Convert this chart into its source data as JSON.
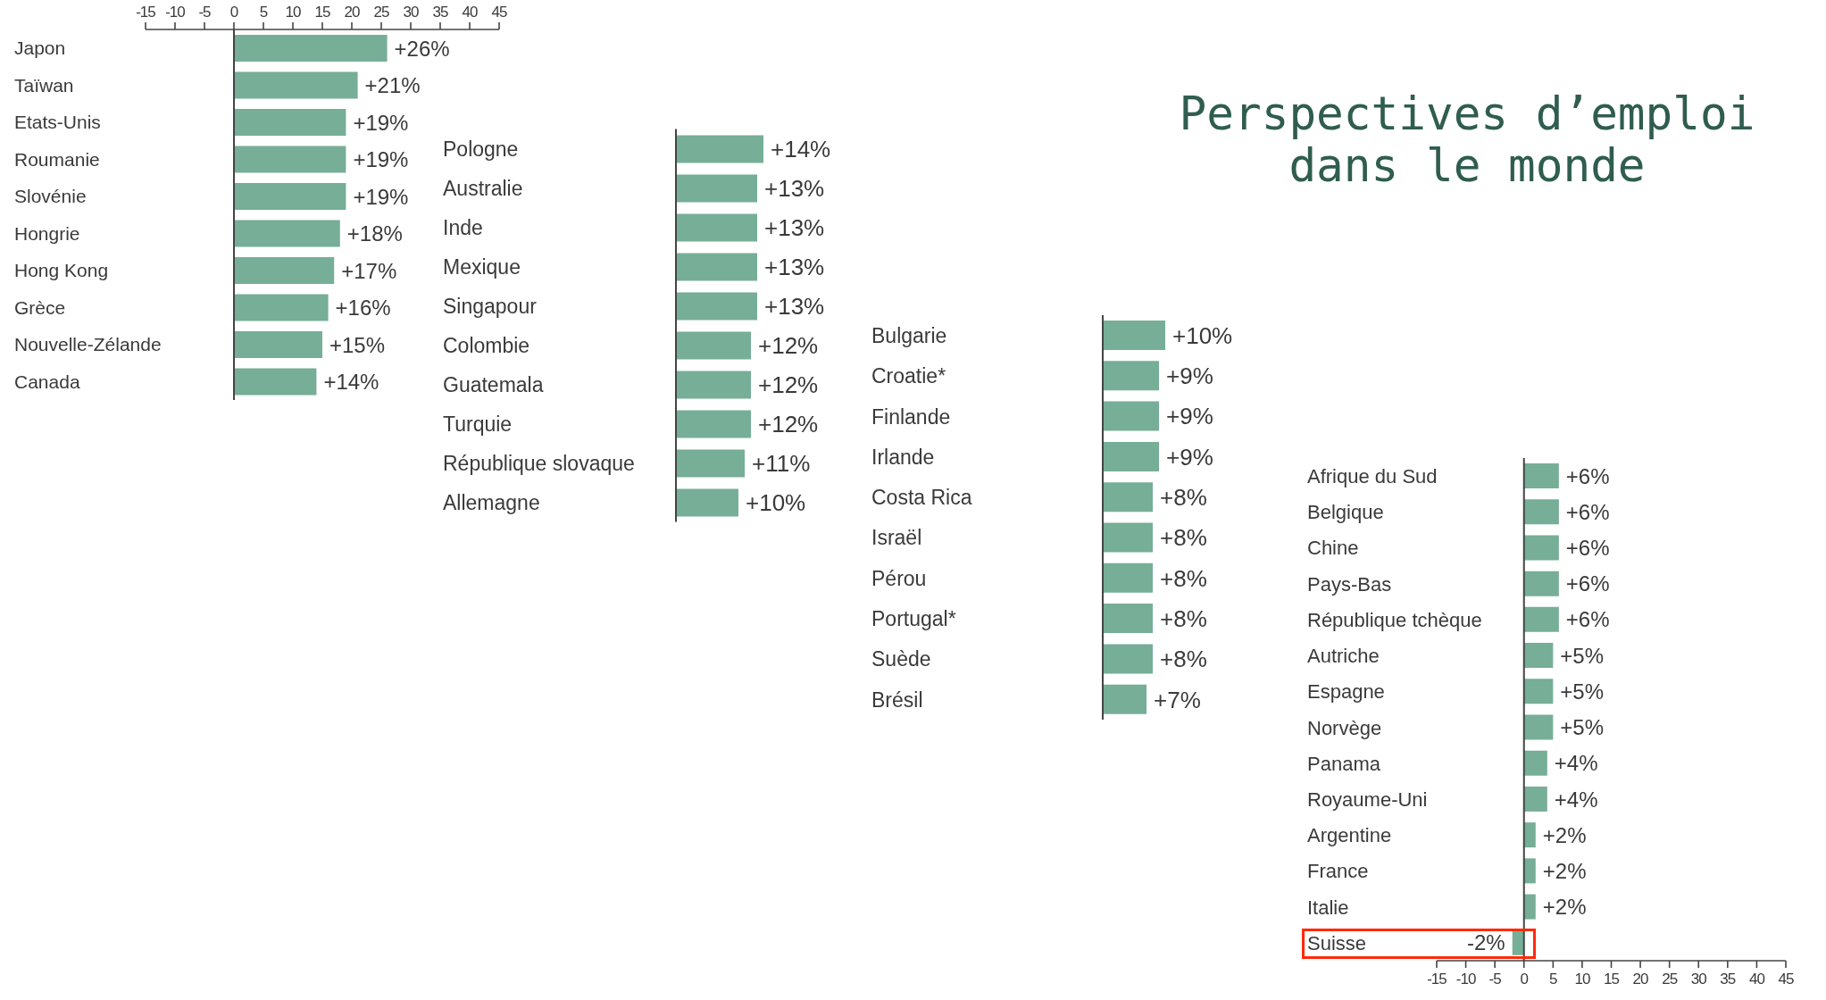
{
  "chart_data": [
    {
      "type": "bar",
      "orientation": "horizontal",
      "categories": [
        "Japon",
        "Taïwan",
        "Etats-Unis",
        "Roumanie",
        "Slovénie",
        "Hongrie",
        "Hong Kong",
        "Grèce",
        "Nouvelle-Zélande",
        "Canada"
      ],
      "values": [
        26,
        21,
        19,
        19,
        19,
        18,
        17,
        16,
        15,
        14
      ],
      "value_labels": [
        "+26%",
        "+21%",
        "+19%",
        "+19%",
        "+19%",
        "+18%",
        "+17%",
        "+16%",
        "+15%",
        "+14%"
      ],
      "color": "#76ae97",
      "xlim": [
        -15,
        45
      ],
      "xticks": [
        -15,
        -10,
        -5,
        0,
        5,
        10,
        15,
        20,
        25,
        30,
        35,
        40,
        45
      ]
    },
    {
      "type": "bar",
      "orientation": "horizontal",
      "categories": [
        "Pologne",
        "Australie",
        "Inde",
        "Mexique",
        "Singapour",
        "Colombie",
        "Guatemala",
        "Turquie",
        "République slovaque",
        "Allemagne"
      ],
      "values": [
        14,
        13,
        13,
        13,
        13,
        12,
        12,
        12,
        11,
        10
      ],
      "value_labels": [
        "+14%",
        "+13%",
        "+13%",
        "+13%",
        "+13%",
        "+12%",
        "+12%",
        "+12%",
        "+11%",
        "+10%"
      ],
      "color": "#76ae97",
      "tick_labels": "y"
    },
    {
      "type": "bar",
      "orientation": "horizontal",
      "categories": [
        "Bulgarie",
        "Croatie*",
        "Finlande",
        "Irlande",
        "Costa Rica",
        "Israël",
        "Pérou",
        "Portugal*",
        "Suède",
        "Brésil"
      ],
      "values": [
        10,
        9,
        9,
        9,
        8,
        8,
        8,
        8,
        8,
        7
      ],
      "value_labels": [
        "+10%",
        "+9%",
        "+9%",
        "+9%",
        "+8%",
        "+8%",
        "+8%",
        "+8%",
        "+8%",
        "+7%"
      ],
      "color": "#76ae97",
      "tick_labels": "y"
    },
    {
      "type": "bar",
      "orientation": "horizontal",
      "title": "Perspectives d’emploi dans le monde",
      "categories": [
        "Afrique du Sud",
        "Belgique",
        "Chine",
        "Pays-Bas",
        "République tchèque",
        "Autriche",
        "Espagne",
        "Norvège",
        "Panama",
        "Royaume-Uni",
        "Argentine",
        "France",
        "Italie",
        "Suisse"
      ],
      "values": [
        6,
        6,
        6,
        6,
        6,
        5,
        5,
        5,
        4,
        4,
        2,
        2,
        2,
        -2
      ],
      "value_labels": [
        "+6%",
        "+6%",
        "+6%",
        "+6%",
        "+6%",
        "+5%",
        "+5%",
        "+5%",
        "+4%",
        "+4%",
        "+2%",
        "+2%",
        "+2%",
        "-2%"
      ],
      "color": "#76ae97",
      "xlim": [
        -15,
        45
      ],
      "xticks": [
        -15,
        -10,
        -5,
        0,
        5,
        10,
        15,
        20,
        25,
        30,
        35,
        40,
        45
      ]
    }
  ]
}
